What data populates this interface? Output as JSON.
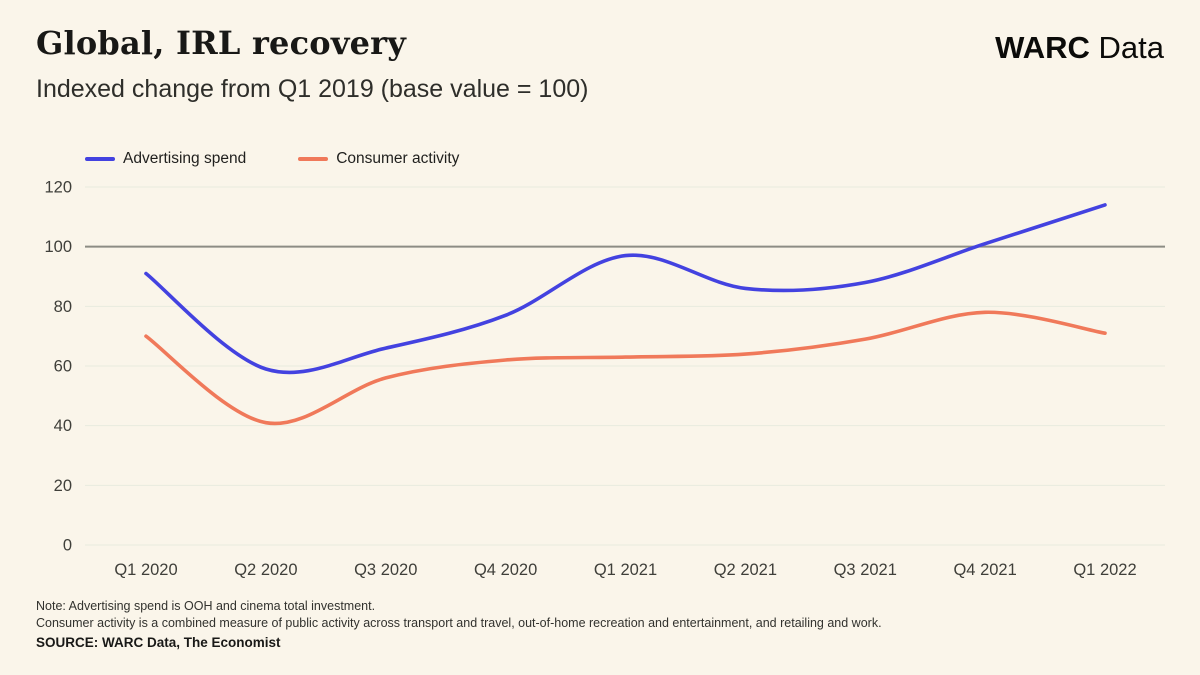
{
  "page": {
    "background": "#FAF5EA"
  },
  "header": {
    "title": "Global, IRL recovery",
    "subtitle": "Indexed change from Q1 2019 (base value = 100)",
    "brand": {
      "bold": "WARC",
      "regular": "Data"
    }
  },
  "chart_data": {
    "type": "line",
    "title": "Global, IRL recovery",
    "subtitle": "Indexed change from Q1 2019 (base value = 100)",
    "categories": [
      "Q1 2020",
      "Q2 2020",
      "Q3 2020",
      "Q4 2020",
      "Q1 2021",
      "Q2 2021",
      "Q3 2021",
      "Q4 2021",
      "Q1 2022"
    ],
    "series": [
      {
        "name": "Advertising spend",
        "color": "#4342E0",
        "values": [
          91,
          59,
          66,
          77,
          97,
          86,
          88,
          101,
          114
        ]
      },
      {
        "name": "Consumer activity",
        "color": "#F0795A",
        "values": [
          70,
          41,
          56,
          62,
          63,
          64,
          69,
          78,
          71
        ]
      }
    ],
    "ylim": [
      0,
      120
    ],
    "ytick_step": 20,
    "yticks": [
      0,
      20,
      40,
      60,
      80,
      100,
      120
    ],
    "reference_line": 100,
    "grid": "horizontal-only",
    "legend_position": "top-left",
    "colors": {
      "grid": "#E8EBDE",
      "reference": "#8C8C84",
      "tick_text": "#3F3F3A"
    }
  },
  "footer": {
    "note_line1": "Note: Advertising spend is OOH and cinema total investment.",
    "note_line2": "Consumer activity is a combined measure of public activity across transport and travel, out-of-home recreation and entertainment, and retailing and work.",
    "source": "SOURCE: WARC Data, The Economist"
  }
}
